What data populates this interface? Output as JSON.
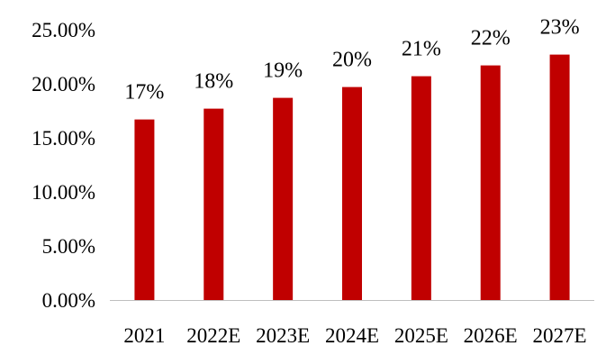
{
  "chart_data": {
    "type": "bar",
    "categories": [
      "2021",
      "2022E",
      "2023E",
      "2024E",
      "2025E",
      "2026E",
      "2027E"
    ],
    "values": [
      16.7,
      17.7,
      18.7,
      19.7,
      20.7,
      21.7,
      22.7
    ],
    "data_labels": [
      "17%",
      "18%",
      "19%",
      "20%",
      "21%",
      "22%",
      "23%"
    ],
    "y_ticks": [
      0,
      5,
      10,
      15,
      20,
      25
    ],
    "y_tick_labels": [
      "0.00%",
      "5.00%",
      "10.00%",
      "15.00%",
      "20.00%",
      "25.00%"
    ],
    "ylim": [
      0,
      25
    ],
    "grid": false,
    "legend": "none",
    "title": "",
    "xlabel": "",
    "ylabel": "",
    "bar_color": "#c00000"
  }
}
